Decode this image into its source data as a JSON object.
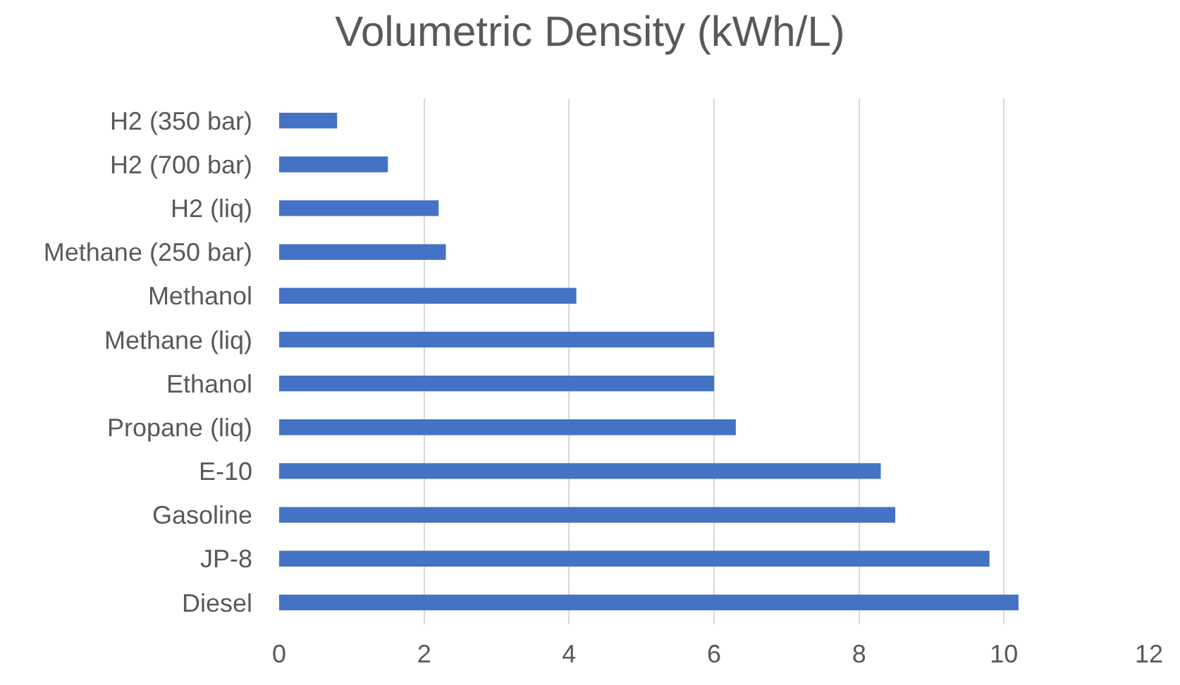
{
  "chart_data": {
    "type": "bar",
    "orientation": "horizontal",
    "title": "Volumetric Density (kWh/L)",
    "categories": [
      "H2 (350 bar)",
      "H2 (700 bar)",
      "H2 (liq)",
      "Methane (250 bar)",
      "Methanol",
      "Methane (liq)",
      "Ethanol",
      "Propane (liq)",
      "E-10",
      "Gasoline",
      "JP-8",
      "Diesel"
    ],
    "values": [
      0.8,
      1.5,
      2.2,
      2.3,
      4.1,
      6.0,
      6.0,
      6.3,
      8.3,
      8.5,
      9.8,
      10.2
    ],
    "color": "#4472c4",
    "xlim": [
      0,
      12
    ],
    "xticks": [
      0,
      2,
      4,
      6,
      8,
      10,
      12
    ],
    "grid": "x"
  }
}
